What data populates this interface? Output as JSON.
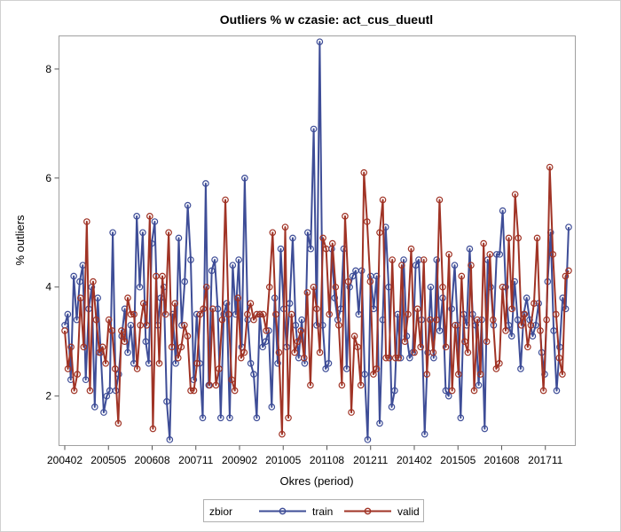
{
  "chart_data": {
    "type": "line",
    "title": "Outliers % w czasie: act_cus_dueutl",
    "xlabel": "Okres (period)",
    "ylabel": "% outliers",
    "x_ticks": [
      "200402",
      "200505",
      "200608",
      "200711",
      "200902",
      "201005",
      "201108",
      "201211",
      "201402",
      "201505",
      "201608",
      "201711"
    ],
    "x_range": [
      "200402",
      "201807"
    ],
    "y_ticks": [
      2,
      4,
      6,
      8
    ],
    "ylim": [
      1.1,
      8.6
    ],
    "grid": false,
    "legend": {
      "title": "zbior",
      "position": "bottom-center",
      "entries": [
        "train",
        "valid"
      ]
    },
    "colors": {
      "train": "#3e4d97",
      "valid": "#a03325"
    },
    "series": [
      {
        "name": "train",
        "values": [
          3.3,
          3.5,
          2.3,
          4.2,
          3.4,
          4.1,
          4.4,
          2.3,
          3.6,
          4.0,
          1.8,
          3.8,
          2.8,
          1.7,
          2.0,
          2.1,
          5.0,
          2.1,
          2.4,
          3.1,
          3.6,
          2.8,
          3.3,
          2.6,
          5.3,
          4.0,
          5.0,
          3.0,
          2.6,
          4.8,
          5.2,
          3.3,
          3.8,
          4.0,
          1.9,
          1.2,
          3.5,
          2.6,
          4.9,
          3.3,
          4.1,
          5.5,
          4.5,
          2.3,
          3.5,
          2.6,
          1.6,
          5.9,
          2.2,
          4.3,
          4.5,
          3.6,
          1.6,
          3.5,
          3.7,
          1.6,
          4.4,
          3.5,
          4.5,
          2.9,
          6.0,
          3.4,
          2.6,
          2.4,
          1.6,
          3.5,
          2.9,
          3.0,
          3.2,
          1.8,
          3.8,
          2.6,
          4.7,
          3.6,
          2.9,
          3.7,
          4.9,
          3.3,
          2.7,
          3.4,
          2.6,
          5.0,
          4.7,
          6.9,
          3.3,
          8.5,
          3.3,
          2.5,
          2.6,
          4.7,
          3.8,
          3.4,
          3.6,
          4.7,
          2.5,
          4.0,
          4.2,
          4.3,
          3.5,
          4.3,
          2.4,
          1.2,
          4.2,
          3.6,
          4.2,
          1.5,
          3.4,
          5.1,
          4.0,
          1.8,
          2.1,
          3.5,
          2.7,
          4.5,
          3.1,
          2.7,
          2.8,
          4.4,
          4.5,
          3.4,
          1.3,
          2.8,
          4.0,
          2.7,
          4.5,
          3.2,
          3.8,
          2.1,
          2.0,
          3.6,
          4.4,
          3.3,
          1.6,
          3.5,
          3.3,
          4.7,
          3.5,
          3.3,
          2.2,
          3.4,
          1.4,
          4.5,
          4.0,
          3.3,
          4.6,
          4.6,
          5.4,
          4.0,
          3.3,
          3.1,
          4.1,
          3.4,
          2.5,
          3.5,
          3.8,
          3.4,
          3.1,
          3.3,
          3.7,
          2.8,
          2.4,
          4.1,
          5.0,
          3.2,
          2.1,
          2.9,
          3.8,
          3.6,
          5.1
        ]
      },
      {
        "name": "valid",
        "values": [
          3.2,
          2.5,
          2.9,
          2.1,
          2.4,
          3.8,
          2.9,
          5.2,
          2.1,
          4.1,
          3.4,
          2.8,
          2.9,
          2.6,
          3.4,
          3.2,
          2.5,
          1.5,
          3.2,
          3.0,
          3.8,
          3.5,
          3.5,
          2.5,
          3.3,
          3.7,
          3.3,
          5.3,
          1.4,
          4.2,
          2.6,
          4.2,
          3.5,
          5.0,
          2.9,
          3.7,
          2.7,
          2.9,
          3.3,
          3.1,
          2.1,
          2.1,
          2.6,
          3.5,
          3.6,
          4.0,
          2.2,
          3.6,
          2.2,
          2.5,
          3.4,
          5.6,
          3.5,
          2.3,
          2.1,
          3.8,
          2.7,
          2.8,
          3.5,
          3.7,
          3.4,
          3.5,
          3.5,
          3.5,
          3.2,
          4.0,
          5.0,
          3.5,
          2.8,
          1.3,
          5.1,
          1.6,
          3.5,
          2.8,
          3.0,
          3.2,
          2.7,
          3.9,
          2.2,
          4.0,
          3.6,
          2.8,
          4.9,
          4.7,
          3.5,
          4.8,
          4.0,
          3.3,
          2.2,
          5.3,
          4.1,
          1.7,
          3.1,
          2.9,
          2.2,
          6.1,
          5.2,
          4.1,
          2.4,
          2.5,
          5.0,
          5.6,
          2.7,
          2.7,
          4.5,
          2.7,
          2.7,
          4.4,
          3.0,
          3.5,
          4.7,
          2.8,
          3.6,
          2.9,
          4.5,
          2.4,
          3.4,
          2.8,
          3.4,
          5.6,
          4.0,
          2.9,
          4.6,
          2.1,
          3.3,
          2.4,
          4.2,
          3.0,
          2.8,
          4.4,
          2.1,
          3.4,
          2.4,
          4.8,
          3.0,
          4.6,
          3.4,
          2.5,
          2.6,
          4.0,
          3.2,
          4.9,
          3.6,
          5.7,
          4.9,
          3.3,
          3.5,
          2.9,
          3.3,
          3.7,
          4.9,
          3.2,
          2.1,
          3.4,
          6.2,
          4.6,
          3.5,
          2.7,
          2.4,
          4.2,
          4.3
        ]
      }
    ]
  }
}
